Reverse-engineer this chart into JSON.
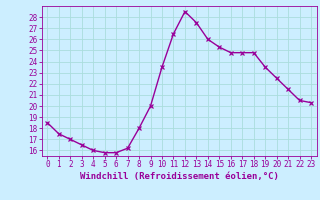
{
  "x": [
    0,
    1,
    2,
    3,
    4,
    5,
    6,
    7,
    8,
    9,
    10,
    11,
    12,
    13,
    14,
    15,
    16,
    17,
    18,
    19,
    20,
    21,
    22,
    23
  ],
  "y": [
    18.5,
    17.5,
    17.0,
    16.5,
    16.0,
    15.8,
    15.8,
    16.2,
    18.0,
    20.0,
    23.5,
    26.5,
    28.5,
    27.5,
    26.0,
    25.3,
    24.8,
    24.8,
    24.8,
    23.5,
    22.5,
    21.5,
    20.5,
    20.3
  ],
  "line_color": "#990099",
  "marker": "x",
  "marker_size": 3,
  "line_width": 1.0,
  "bg_color": "#cceeff",
  "grid_color": "#aadddd",
  "xlabel": "Windchill (Refroidissement éolien,°C)",
  "xlabel_color": "#990099",
  "xlabel_fontsize": 6.5,
  "tick_color": "#990099",
  "tick_fontsize": 5.5,
  "xlim": [
    -0.5,
    23.5
  ],
  "ylim": [
    15.5,
    29.0
  ],
  "yticks": [
    16,
    17,
    18,
    19,
    20,
    21,
    22,
    23,
    24,
    25,
    26,
    27,
    28
  ],
  "xticks": [
    0,
    1,
    2,
    3,
    4,
    5,
    6,
    7,
    8,
    9,
    10,
    11,
    12,
    13,
    14,
    15,
    16,
    17,
    18,
    19,
    20,
    21,
    22,
    23
  ]
}
